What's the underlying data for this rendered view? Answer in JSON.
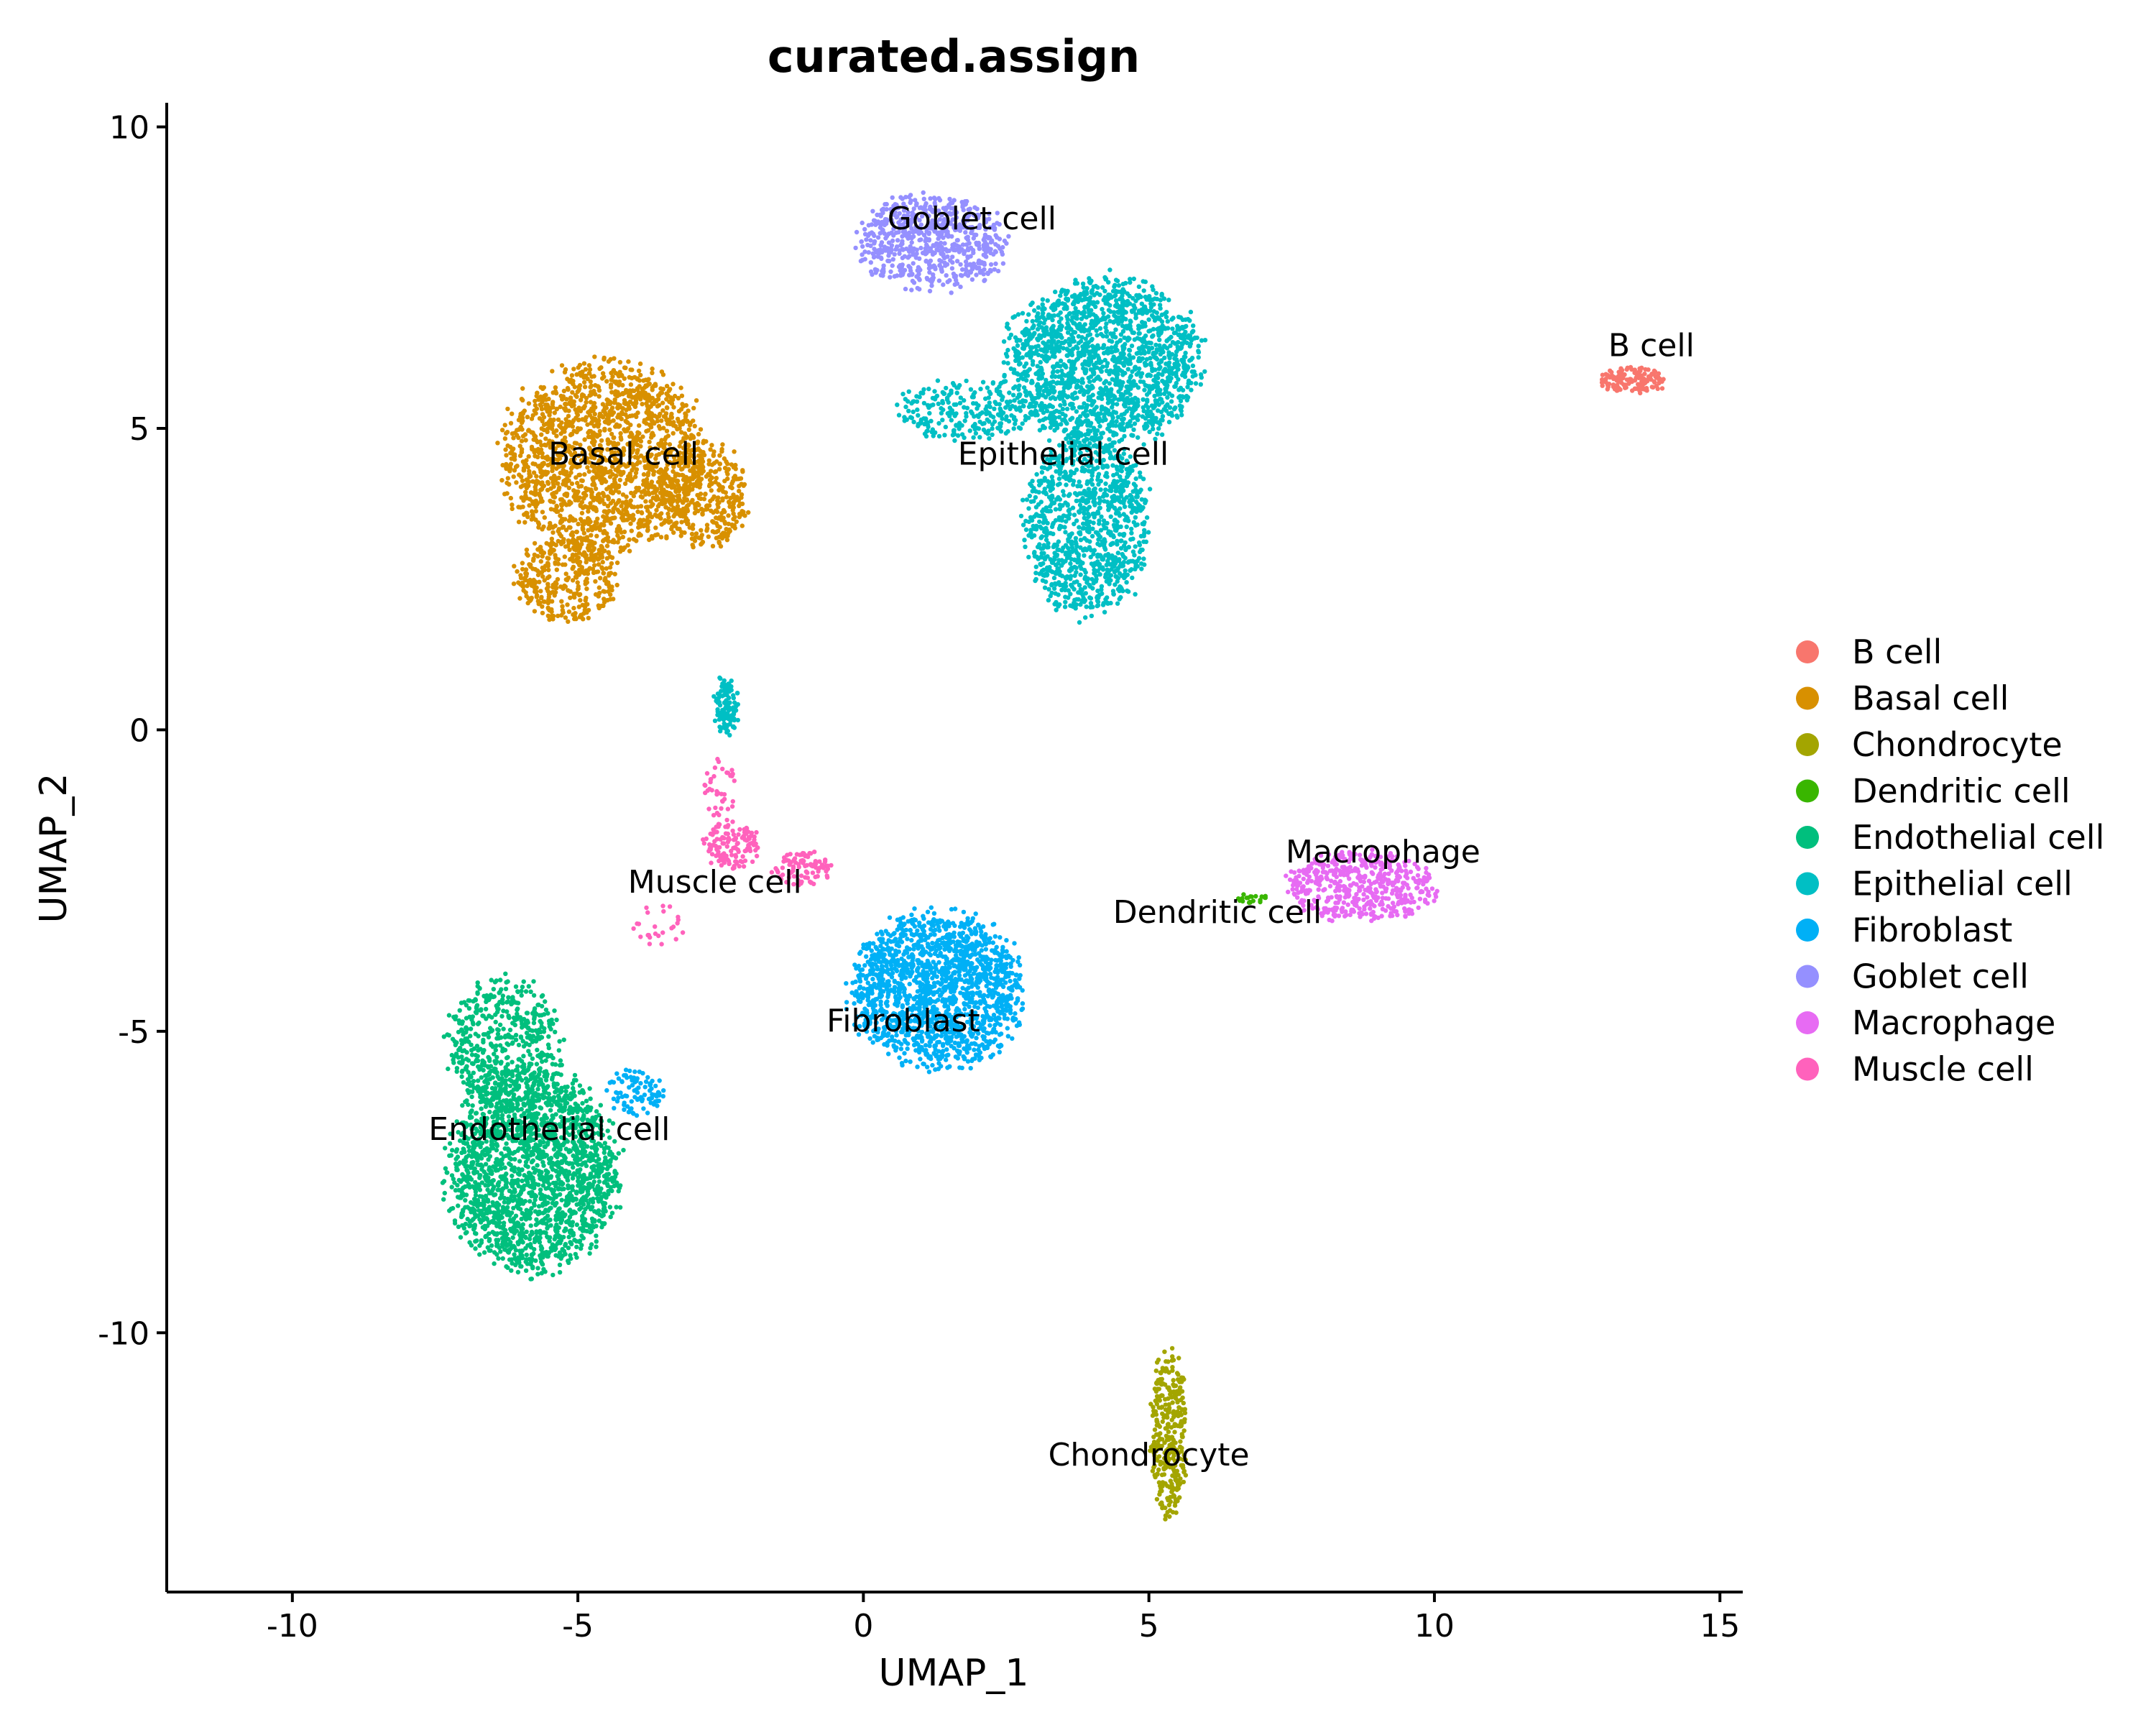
{
  "chart_data": {
    "type": "scatter",
    "title": "curated.assign",
    "xlabel": "UMAP_1",
    "ylabel": "UMAP_2",
    "xlim": [
      -12.2,
      15.4
    ],
    "ylim": [
      -14.3,
      10.4
    ],
    "x_ticks": [
      -10,
      -5,
      0,
      5,
      10,
      15
    ],
    "y_ticks": [
      -10,
      -5,
      0,
      5,
      10
    ],
    "grid": false,
    "legend_position": "right",
    "legend": [
      "B cell",
      "Basal cell",
      "Chondrocyte",
      "Dendritic cell",
      "Endothelial cell",
      "Epithelial cell",
      "Fibroblast",
      "Goblet cell",
      "Macrophage",
      "Muscle cell"
    ],
    "series": [
      {
        "name": "B cell",
        "color": "#F8766D",
        "label_pos": [
          13.8,
          6.2
        ],
        "blobs": [
          {
            "cx": 13.5,
            "cy": 5.8,
            "rx": 0.6,
            "ry": 0.22,
            "n": 130
          }
        ]
      },
      {
        "name": "Basal cell",
        "color": "#D89000",
        "label_pos": [
          -4.2,
          4.4
        ],
        "blobs": [
          {
            "cx": -4.5,
            "cy": 4.5,
            "rx": 1.8,
            "ry": 1.6,
            "n": 1700
          },
          {
            "cx": -5.2,
            "cy": 2.5,
            "rx": 0.9,
            "ry": 0.7,
            "n": 350
          },
          {
            "cx": -2.8,
            "cy": 3.9,
            "rx": 0.8,
            "ry": 0.9,
            "n": 350
          }
        ]
      },
      {
        "name": "Chondrocyte",
        "color": "#A3A500",
        "label_pos": [
          5.0,
          -12.2
        ],
        "blobs": [
          {
            "cx": 5.35,
            "cy": -11.7,
            "rx": 0.32,
            "ry": 1.4,
            "n": 320
          }
        ]
      },
      {
        "name": "Dendritic cell",
        "color": "#39B600",
        "label_pos": [
          6.2,
          -3.2
        ],
        "blobs": [
          {
            "cx": 6.8,
            "cy": -2.8,
            "rx": 0.3,
            "ry": 0.08,
            "n": 20
          }
        ]
      },
      {
        "name": "Endothelial cell",
        "color": "#00BF7D",
        "label_pos": [
          -5.5,
          -6.8
        ],
        "blobs": [
          {
            "cx": -5.8,
            "cy": -7.3,
            "rx": 1.5,
            "ry": 1.7,
            "n": 2000
          },
          {
            "cx": -6.3,
            "cy": -5.2,
            "rx": 1.0,
            "ry": 1.1,
            "n": 500
          }
        ]
      },
      {
        "name": "Epithelial cell",
        "color": "#00BFC4",
        "label_pos": [
          3.5,
          4.4
        ],
        "blobs": [
          {
            "cx": 4.2,
            "cy": 6.1,
            "rx": 1.7,
            "ry": 1.4,
            "n": 1700
          },
          {
            "cx": 3.9,
            "cy": 3.4,
            "rx": 1.1,
            "ry": 1.5,
            "n": 1000
          },
          {
            "cx": 1.8,
            "cy": 5.3,
            "rx": 1.2,
            "ry": 0.5,
            "n": 250
          },
          {
            "cx": -2.4,
            "cy": 0.4,
            "rx": 0.22,
            "ry": 0.5,
            "n": 110
          }
        ]
      },
      {
        "name": "Fibroblast",
        "color": "#00B0F6",
        "label_pos": [
          0.7,
          -5.0
        ],
        "blobs": [
          {
            "cx": 1.3,
            "cy": -4.3,
            "rx": 1.5,
            "ry": 1.3,
            "n": 1600
          },
          {
            "cx": -4.0,
            "cy": -6.0,
            "rx": 0.5,
            "ry": 0.4,
            "n": 90
          }
        ]
      },
      {
        "name": "Goblet cell",
        "color": "#9590FF",
        "label_pos": [
          1.9,
          8.3
        ],
        "blobs": [
          {
            "cx": 1.2,
            "cy": 8.1,
            "rx": 1.3,
            "ry": 0.8,
            "n": 650
          }
        ]
      },
      {
        "name": "Macrophage",
        "color": "#E76BF3",
        "label_pos": [
          9.1,
          -2.2
        ],
        "blobs": [
          {
            "cx": 8.7,
            "cy": -2.6,
            "rx": 1.3,
            "ry": 0.6,
            "n": 500
          }
        ]
      },
      {
        "name": "Muscle cell",
        "color": "#FF62BC",
        "label_pos": [
          -2.6,
          -2.7
        ],
        "blobs": [
          {
            "cx": -2.3,
            "cy": -1.9,
            "rx": 0.5,
            "ry": 0.4,
            "n": 130
          },
          {
            "cx": -1.1,
            "cy": -2.3,
            "rx": 0.5,
            "ry": 0.3,
            "n": 90
          },
          {
            "cx": -2.5,
            "cy": -1.0,
            "rx": 0.3,
            "ry": 0.5,
            "n": 40
          },
          {
            "cx": -3.6,
            "cy": -3.2,
            "rx": 0.5,
            "ry": 0.4,
            "n": 25
          }
        ]
      }
    ]
  }
}
